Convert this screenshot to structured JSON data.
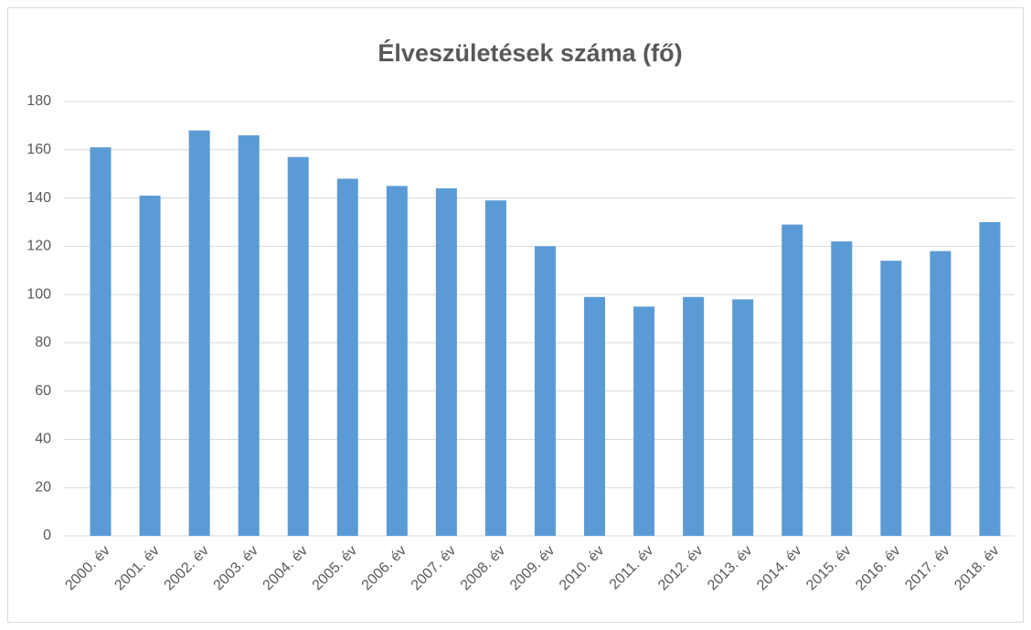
{
  "chart_data": {
    "type": "bar",
    "title": "Élveszületések száma (fő)",
    "categories": [
      "2000. év",
      "2001. év",
      "2002. év",
      "2003. év",
      "2004. év",
      "2005. év",
      "2006. év",
      "2007. év",
      "2008. év",
      "2009. év",
      "2010. év",
      "2011. év",
      "2012. év",
      "2013. év",
      "2014. év",
      "2015. év",
      "2016. év",
      "2017. év",
      "2018. év"
    ],
    "values": [
      161,
      141,
      168,
      166,
      157,
      148,
      145,
      144,
      139,
      120,
      99,
      95,
      99,
      98,
      129,
      122,
      114,
      118,
      130
    ],
    "color": "#5b9bd5",
    "ylim": [
      0,
      180
    ],
    "yticks": [
      0,
      20,
      40,
      60,
      80,
      100,
      120,
      140,
      160,
      180
    ],
    "grid": true
  }
}
